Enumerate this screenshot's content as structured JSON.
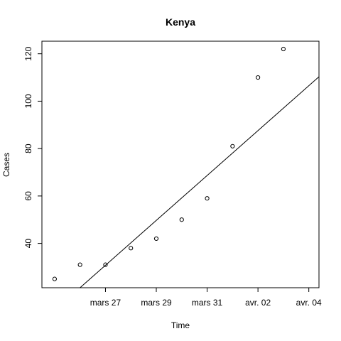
{
  "chart_data": {
    "type": "scatter",
    "title": "Kenya",
    "xlabel": "Time",
    "ylabel": "Cases",
    "x_type": "date",
    "x_range": [
      "2020-03-24T12:00",
      "2020-04-04T09:36"
    ],
    "ylim": [
      21.3,
      125.3
    ],
    "x_ticks": [
      {
        "date": "2020-03-27",
        "label": "mars 27"
      },
      {
        "date": "2020-03-29",
        "label": "mars 29"
      },
      {
        "date": "2020-03-31",
        "label": "mars 31"
      },
      {
        "date": "2020-04-02",
        "label": "avr. 02"
      },
      {
        "date": "2020-04-04",
        "label": "avr. 04"
      }
    ],
    "y_ticks": [
      40,
      60,
      80,
      100,
      120
    ],
    "points": [
      {
        "date": "2020-03-25",
        "cases": 25
      },
      {
        "date": "2020-03-26",
        "cases": 31
      },
      {
        "date": "2020-03-27",
        "cases": 31
      },
      {
        "date": "2020-03-28",
        "cases": 38
      },
      {
        "date": "2020-03-29",
        "cases": 42
      },
      {
        "date": "2020-03-30",
        "cases": 50
      },
      {
        "date": "2020-03-31",
        "cases": 59
      },
      {
        "date": "2020-04-01",
        "cases": 81
      },
      {
        "date": "2020-04-02",
        "cases": 110
      },
      {
        "date": "2020-04-03",
        "cases": 122
      }
    ],
    "trend_line": {
      "type": "linear",
      "start": {
        "date": "2020-03-26",
        "cases": 21.3
      },
      "end": {
        "date": "2020-04-04T09:36",
        "cases": 110.3
      }
    },
    "grid": false,
    "legend": "none",
    "point_style": "open-circle",
    "colors": {
      "foreground": "#000000",
      "background": "#ffffff"
    }
  }
}
